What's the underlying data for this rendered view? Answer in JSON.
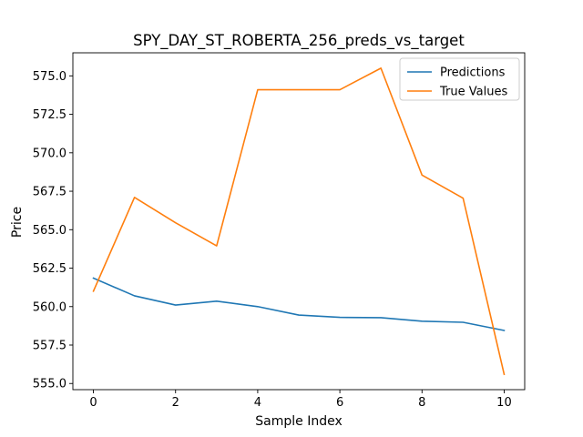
{
  "chart_data": {
    "type": "line",
    "title": "SPY_DAY_ST_ROBERTA_256_preds_vs_target",
    "xlabel": "Sample Index",
    "ylabel": "Price",
    "x": [
      0,
      1,
      2,
      3,
      4,
      5,
      6,
      7,
      8,
      9,
      10
    ],
    "xlim": [
      -0.5,
      10.5
    ],
    "ylim": [
      554.6,
      576.5
    ],
    "xticks": [
      0,
      2,
      4,
      6,
      8,
      10
    ],
    "yticks": [
      555.0,
      557.5,
      560.0,
      562.5,
      565.0,
      567.5,
      570.0,
      572.5,
      575.0
    ],
    "ytick_labels": [
      "555.0",
      "557.5",
      "560.0",
      "562.5",
      "565.0",
      "567.5",
      "570.0",
      "572.5",
      "575.0"
    ],
    "grid": false,
    "legend_position": "top-right",
    "series": [
      {
        "name": "Predictions",
        "color": "#1f77b4",
        "values": [
          561.85,
          560.7,
          560.1,
          560.35,
          560.0,
          559.45,
          559.3,
          559.28,
          559.05,
          558.98,
          558.45
        ]
      },
      {
        "name": "True Values",
        "color": "#ff7f0e",
        "values": [
          561.0,
          567.1,
          565.45,
          563.95,
          574.1,
          574.1,
          574.1,
          575.5,
          568.55,
          567.05,
          555.6
        ]
      }
    ]
  }
}
